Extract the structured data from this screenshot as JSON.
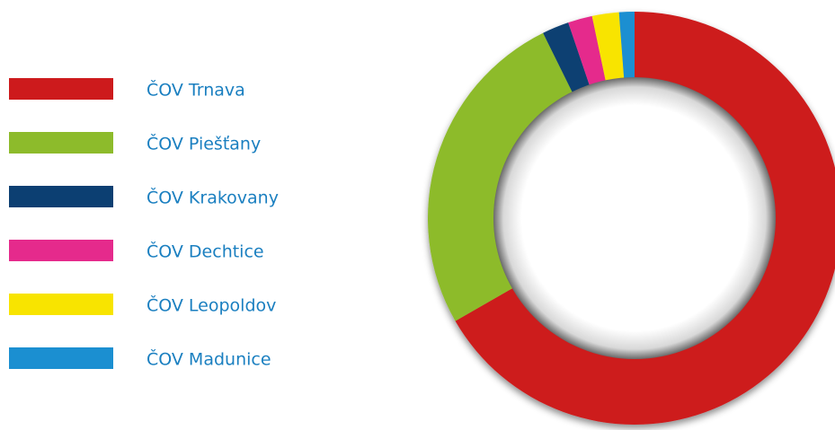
{
  "chart_data": {
    "type": "donut",
    "categories": [
      "ČOV Trnava",
      "ČOV Piešťany",
      "ČOV Krakovany",
      "ČOV Dechtice",
      "ČOV Leopoldov",
      "ČOV Madunice"
    ],
    "values": [
      66.7,
      26,
      2.1,
      1.9,
      2.1,
      1.2
    ],
    "colors": [
      "#cd1a1c",
      "#8dbb2b",
      "#0c3f72",
      "#e52a8c",
      "#f8e400",
      "#1b8fd1"
    ]
  }
}
